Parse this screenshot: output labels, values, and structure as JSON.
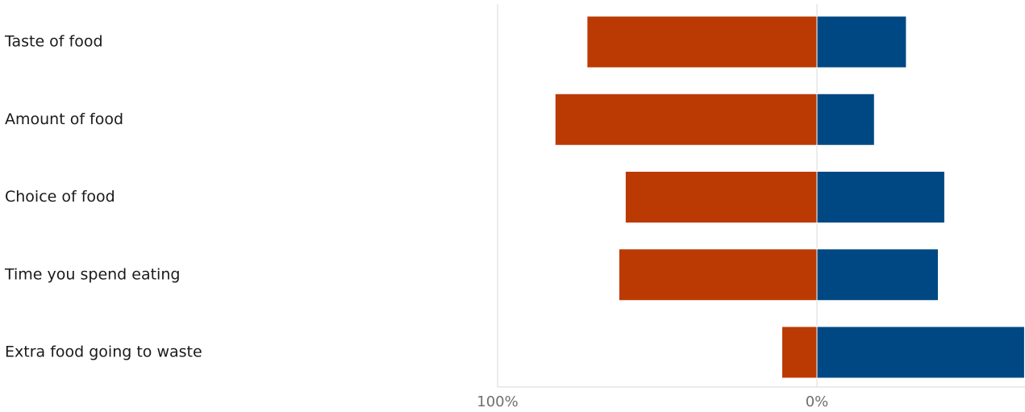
{
  "chart_data": {
    "type": "bar",
    "orientation": "horizontal",
    "layout": "diverging",
    "categories": [
      "Taste of food",
      "Amount of food",
      "Choice of food",
      "Time you spend eating",
      "Extra food going to waste"
    ],
    "series": [
      {
        "direction": "negative",
        "color": "#bb3a04",
        "values": [
          72,
          82,
          60,
          62,
          11
        ]
      },
      {
        "direction": "positive",
        "color": "#004883",
        "values": [
          28,
          18,
          40,
          38,
          65
        ]
      }
    ],
    "xlim": [
      100,
      0
    ],
    "xticks": [
      {
        "value": 100,
        "label": "100%"
      },
      {
        "value": 0,
        "label": "0%"
      }
    ],
    "grid": true,
    "legend": "none"
  }
}
